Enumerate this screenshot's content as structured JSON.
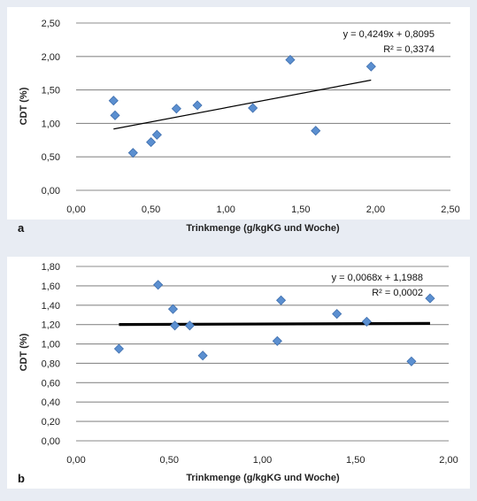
{
  "chart_data": [
    {
      "type": "scatter",
      "panel_label": "a",
      "xlabel": "Trinkmenge (g/kgKG und Woche)",
      "ylabel": "CDT (%)",
      "xlim": [
        0,
        2.5
      ],
      "ylim": [
        0,
        2.5
      ],
      "xticks": [
        "0,00",
        "0,50",
        "1,00",
        "1,50",
        "2,00",
        "2,50"
      ],
      "yticks": [
        "0,00",
        "0,50",
        "1,00",
        "1,50",
        "2,00",
        "2,50"
      ],
      "grid": "horizontal",
      "marker_color": "#5b8fd0",
      "points": [
        {
          "x": 0.25,
          "y": 1.34
        },
        {
          "x": 0.26,
          "y": 1.12
        },
        {
          "x": 0.38,
          "y": 0.56
        },
        {
          "x": 0.5,
          "y": 0.72
        },
        {
          "x": 0.54,
          "y": 0.83
        },
        {
          "x": 0.67,
          "y": 1.22
        },
        {
          "x": 0.81,
          "y": 1.27
        },
        {
          "x": 1.18,
          "y": 1.23
        },
        {
          "x": 1.43,
          "y": 1.95
        },
        {
          "x": 1.6,
          "y": 0.89
        },
        {
          "x": 1.97,
          "y": 1.85
        }
      ],
      "trendline": {
        "slope": 0.4249,
        "intercept": 0.8095,
        "x_range": [
          0.25,
          1.97
        ],
        "style": "thin"
      },
      "equation": "y = 0,4249x + 0,8095",
      "r_squared": "R² = 0,3374"
    },
    {
      "type": "scatter",
      "panel_label": "b",
      "xlabel": "Trinkmenge (g/kgKG und Woche)",
      "ylabel": "CDT (%)",
      "xlim": [
        0,
        2.0
      ],
      "ylim": [
        0,
        1.8
      ],
      "xticks": [
        "0,00",
        "0,50",
        "1,00",
        "1,50",
        "2,00"
      ],
      "yticks": [
        "0,00",
        "0,20",
        "0,40",
        "0,60",
        "0,80",
        "1,00",
        "1,20",
        "1,40",
        "1,60",
        "1,80"
      ],
      "grid": "horizontal",
      "marker_color": "#5b8fd0",
      "points": [
        {
          "x": 0.23,
          "y": 0.95
        },
        {
          "x": 0.44,
          "y": 1.61
        },
        {
          "x": 0.52,
          "y": 1.36
        },
        {
          "x": 0.53,
          "y": 1.19
        },
        {
          "x": 0.61,
          "y": 1.19
        },
        {
          "x": 0.68,
          "y": 0.88
        },
        {
          "x": 1.08,
          "y": 1.03
        },
        {
          "x": 1.1,
          "y": 1.45
        },
        {
          "x": 1.4,
          "y": 1.31
        },
        {
          "x": 1.56,
          "y": 1.23
        },
        {
          "x": 1.8,
          "y": 0.82
        },
        {
          "x": 1.9,
          "y": 1.47
        }
      ],
      "trendline": {
        "slope": 0.0068,
        "intercept": 1.1988,
        "x_range": [
          0.23,
          1.9
        ],
        "style": "thick"
      },
      "equation": "y = 0,0068x + 1,1988",
      "r_squared": "R² = 0,0002"
    }
  ]
}
